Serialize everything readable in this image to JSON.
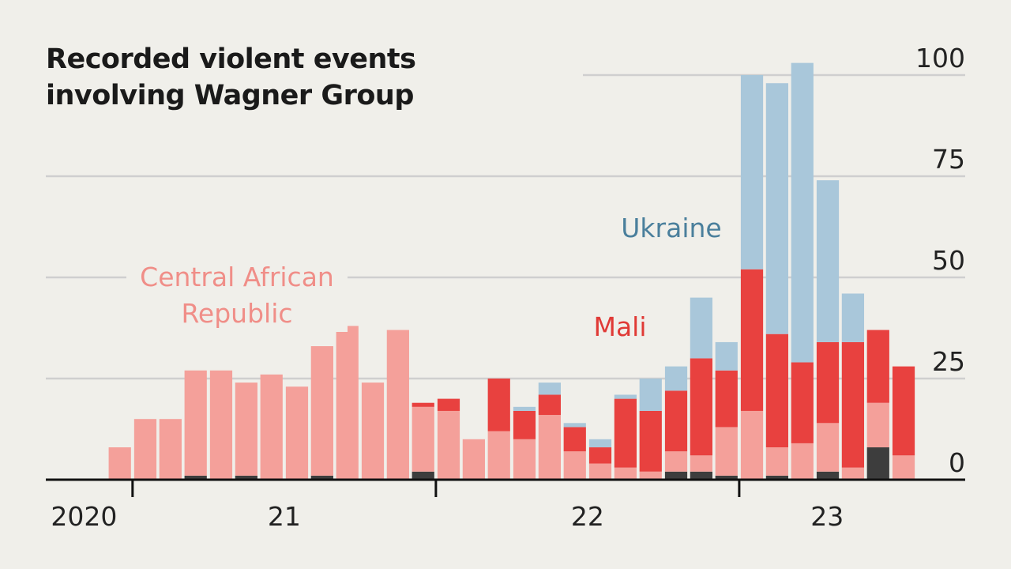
{
  "chart_data": {
    "type": "stacked-bar",
    "title": "Recorded violent events involving Wagner Group",
    "x": [
      2020.958,
      2021.042,
      2021.125,
      2021.208,
      2021.292,
      2021.375,
      2021.458,
      2021.542,
      2021.625,
      2021.708,
      2021.792,
      2021.875,
      2021.958,
      2022.042,
      2022.125,
      2022.208,
      2022.292,
      2022.375,
      2022.458,
      2022.542,
      2022.625,
      2022.708,
      2022.792,
      2022.875,
      2022.958,
      2023.042,
      2023.125,
      2023.208,
      2023.292,
      2023.375,
      2023.458,
      2023.542
    ],
    "series": [
      {
        "color": "#3d3d3d",
        "values": [
          0,
          0,
          0,
          1,
          0,
          1,
          0,
          0,
          1,
          0,
          0,
          0,
          2,
          0,
          0,
          0,
          0,
          0,
          0,
          0,
          0,
          0,
          2,
          2,
          1,
          0,
          1,
          0,
          2,
          0,
          8,
          0
        ]
      },
      {
        "name": "Central African Republic",
        "color": "#f4a09a",
        "label_color": "#f08e88",
        "values": [
          8,
          15,
          15,
          26,
          27,
          23,
          26,
          23,
          32,
          38,
          24,
          37,
          16,
          17,
          10,
          12,
          10,
          16,
          7,
          4,
          3,
          2,
          5,
          4,
          12,
          17,
          7,
          9,
          12,
          3,
          11,
          6
        ]
      },
      {
        "name": "Mali",
        "color": "#e8413f",
        "label_color": "#e03a36",
        "values": [
          0,
          0,
          0,
          0,
          0,
          0,
          0,
          0,
          0,
          0,
          0,
          0,
          1,
          3,
          0,
          13,
          7,
          5,
          6,
          4,
          17,
          15,
          15,
          24,
          14,
          35,
          28,
          20,
          20,
          31,
          18,
          22
        ]
      },
      {
        "name": "Ukraine",
        "color": "#a9c7da",
        "label_color": "#4a7f9c",
        "values": [
          0,
          0,
          0,
          0,
          0,
          0,
          0,
          0,
          0,
          0,
          0,
          0,
          0,
          0,
          0,
          0,
          1,
          3,
          1,
          2,
          1,
          8,
          6,
          15,
          7,
          48,
          62,
          74,
          40,
          12,
          0,
          0
        ]
      }
    ],
    "xlim": [
      2020.714,
      2023.745
    ],
    "xticks": [
      2021,
      2022,
      2023
    ],
    "xtick_labels": [
      {
        "value": 2020.84,
        "label": "2020"
      },
      {
        "value": 2021.5,
        "label": "21"
      },
      {
        "value": 2022.5,
        "label": "22"
      },
      {
        "value": 2023.29,
        "label": "23"
      }
    ],
    "ylim": [
      0,
      105
    ],
    "yticks": [
      0,
      25,
      50,
      75,
      100
    ],
    "grid": true
  }
}
